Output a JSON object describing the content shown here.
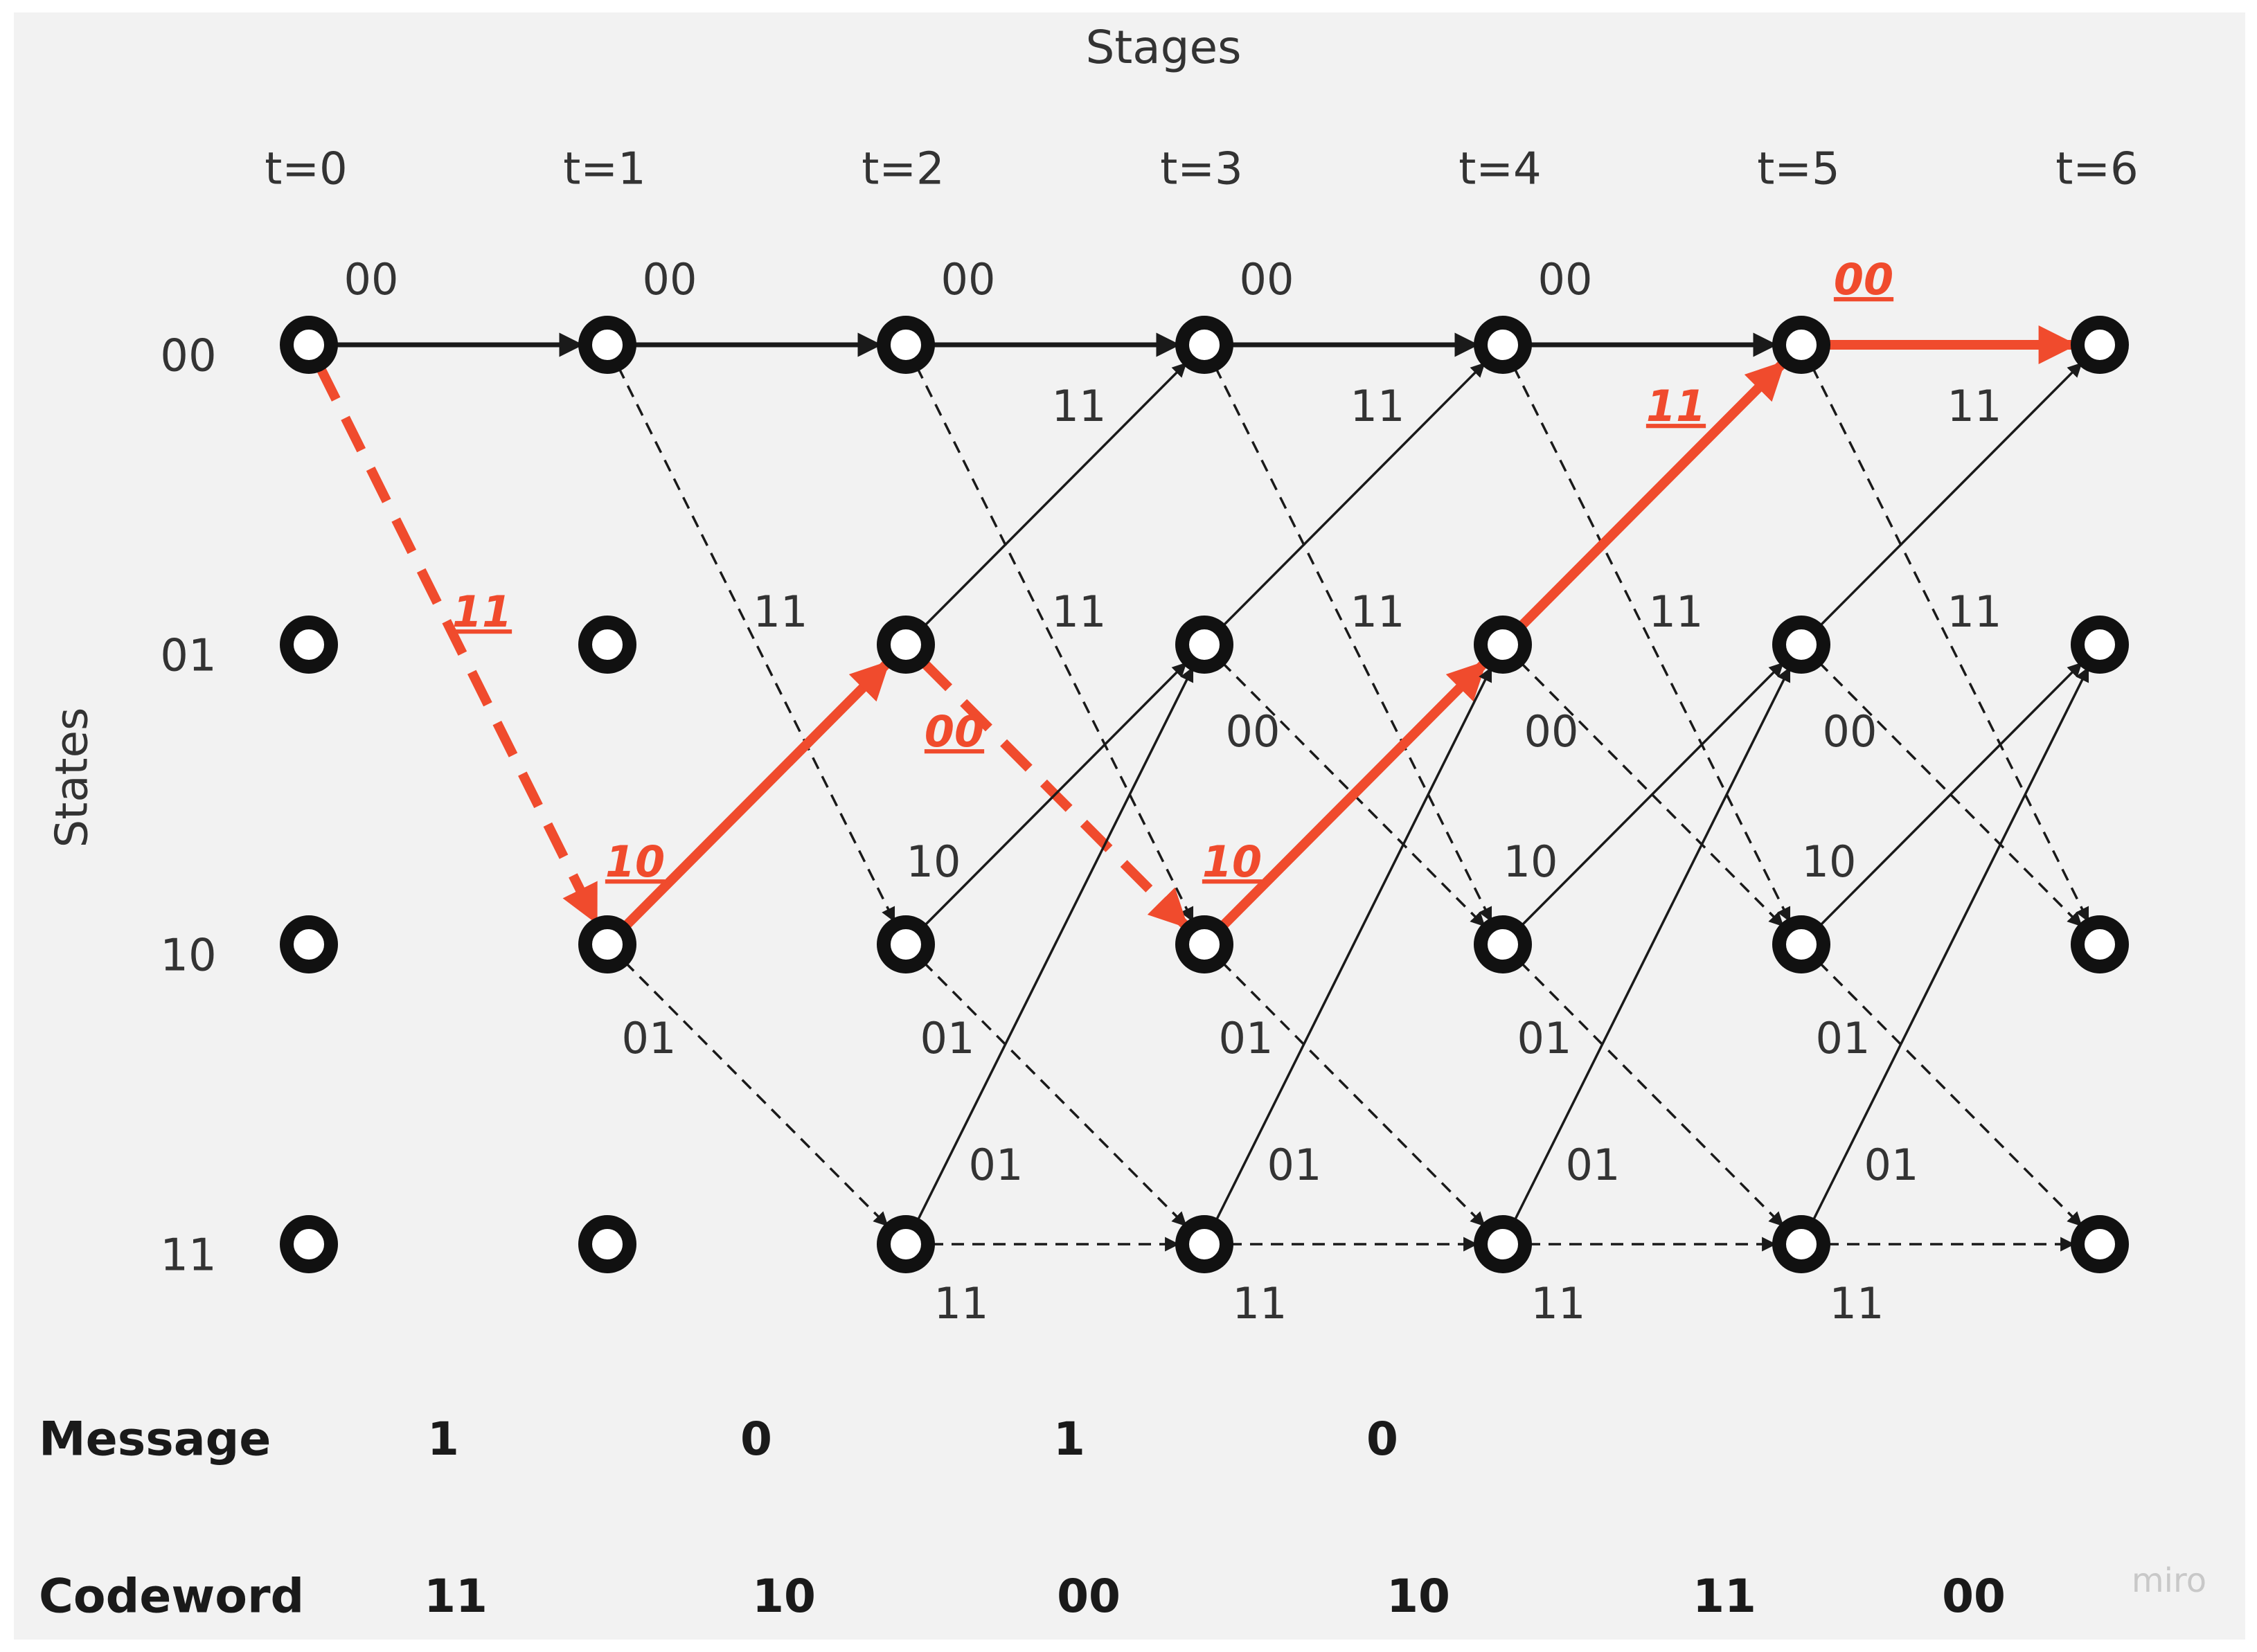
{
  "title": "Stages",
  "y_axis_label": "States",
  "stages": [
    "t=0",
    "t=1",
    "t=2",
    "t=3",
    "t=4",
    "t=5",
    "t=6"
  ],
  "states": [
    "00",
    "01",
    "10",
    "11"
  ],
  "trellis": {
    "step_labels": {
      "from00_to00": "00",
      "from00_to10": "11",
      "from01_to00": "11",
      "from01_to10": "00",
      "from10_to01": "10",
      "from10_to11": "01",
      "from11_to01": "01",
      "from11_to11": "11"
    },
    "highlight_path": {
      "color": "#f04b2d",
      "steps": [
        {
          "from_state": "00",
          "to_state": "10",
          "output": "11"
        },
        {
          "from_state": "10",
          "to_state": "01",
          "output": "10"
        },
        {
          "from_state": "01",
          "to_state": "10",
          "output": "00"
        },
        {
          "from_state": "10",
          "to_state": "01",
          "output": "10"
        },
        {
          "from_state": "01",
          "to_state": "00",
          "output": "11"
        },
        {
          "from_state": "00",
          "to_state": "00",
          "output": "00"
        }
      ]
    }
  },
  "message": {
    "label": "Message",
    "bits": [
      "1",
      "0",
      "1",
      "0"
    ]
  },
  "codeword": {
    "label": "Codeword",
    "symbols": [
      "11",
      "10",
      "00",
      "10",
      "11",
      "00"
    ]
  },
  "watermark": "miro"
}
